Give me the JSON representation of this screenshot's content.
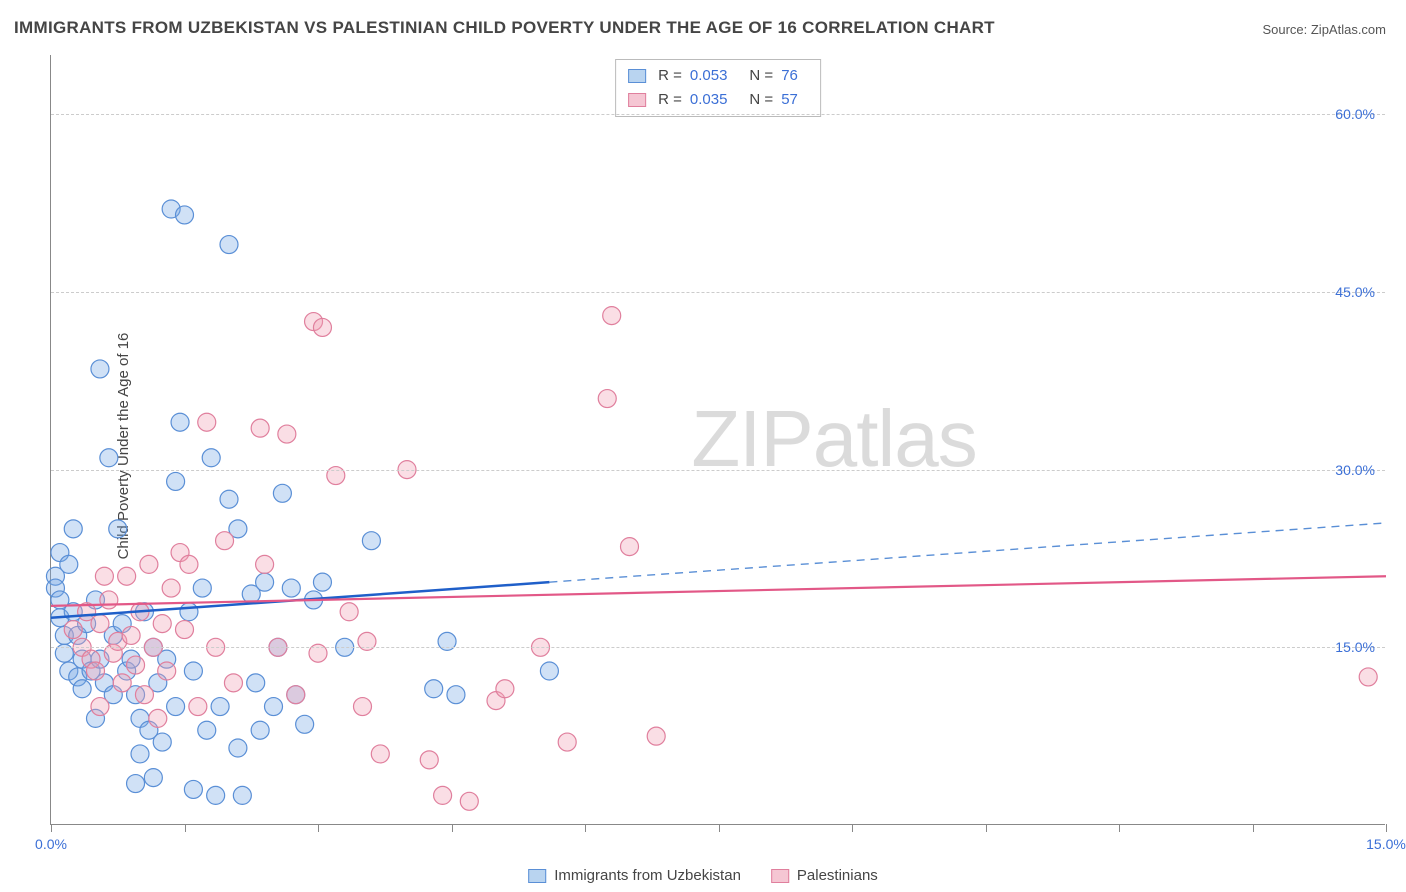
{
  "title": "IMMIGRANTS FROM UZBEKISTAN VS PALESTINIAN CHILD POVERTY UNDER THE AGE OF 16 CORRELATION CHART",
  "source_prefix": "Source: ",
  "source_name": "ZipAtlas.com",
  "y_axis_label": "Child Poverty Under the Age of 16",
  "watermark_a": "ZIP",
  "watermark_b": "atlas",
  "chart": {
    "type": "scatter",
    "xlim": [
      0,
      15
    ],
    "ylim": [
      0,
      65
    ],
    "x_ticks": [
      0,
      1.5,
      3,
      4.5,
      6,
      7.5,
      9,
      10.5,
      12,
      13.5,
      15
    ],
    "x_tick_labels": {
      "0": "0.0%",
      "15": "15.0%"
    },
    "y_gridlines": [
      15,
      30,
      45,
      60
    ],
    "y_tick_labels": {
      "15": "15.0%",
      "30": "30.0%",
      "45": "45.0%",
      "60": "60.0%"
    },
    "background_color": "#ffffff",
    "grid_color": "#cccccc",
    "axis_color": "#888888",
    "tick_label_color": "#3b6fd6",
    "marker_radius": 9,
    "marker_stroke_width": 1.2,
    "series": [
      {
        "name": "Immigrants from Uzbekistan",
        "legend_label": "Immigrants from Uzbekistan",
        "fill": "rgba(120,170,230,0.35)",
        "stroke": "#5a8fd6",
        "swatch_fill": "#b9d4f0",
        "swatch_border": "#5a8fd6",
        "R": "0.053",
        "N": "76",
        "trend": {
          "solid": {
            "x1": 0,
            "y1": 17.5,
            "x2": 5.6,
            "y2": 20.5,
            "color": "#1f5fc9",
            "width": 2.5
          },
          "dashed": {
            "x1": 5.6,
            "y1": 20.5,
            "x2": 15,
            "y2": 25.5,
            "color": "#5a8fd6",
            "width": 1.4,
            "dash": "8 6"
          }
        },
        "points": [
          [
            0.05,
            21
          ],
          [
            0.05,
            20
          ],
          [
            0.1,
            19
          ],
          [
            0.1,
            17.5
          ],
          [
            0.15,
            16
          ],
          [
            0.1,
            23
          ],
          [
            0.2,
            22
          ],
          [
            0.15,
            14.5
          ],
          [
            0.25,
            18
          ],
          [
            0.2,
            13
          ],
          [
            0.3,
            16
          ],
          [
            0.3,
            12.5
          ],
          [
            0.35,
            14
          ],
          [
            0.25,
            25
          ],
          [
            0.4,
            17
          ],
          [
            0.45,
            13
          ],
          [
            0.35,
            11.5
          ],
          [
            0.5,
            19
          ],
          [
            0.55,
            14
          ],
          [
            0.5,
            9
          ],
          [
            0.6,
            12
          ],
          [
            0.55,
            38.5
          ],
          [
            0.7,
            16
          ],
          [
            0.65,
            31
          ],
          [
            0.7,
            11
          ],
          [
            0.8,
            17
          ],
          [
            0.85,
            13
          ],
          [
            0.75,
            25
          ],
          [
            0.9,
            14
          ],
          [
            0.95,
            11
          ],
          [
            1.0,
            9
          ],
          [
            0.95,
            3.5
          ],
          [
            1.05,
            18
          ],
          [
            1.0,
            6
          ],
          [
            1.1,
            8
          ],
          [
            1.15,
            15
          ],
          [
            1.15,
            4
          ],
          [
            1.2,
            12
          ],
          [
            1.3,
            14
          ],
          [
            1.25,
            7
          ],
          [
            1.35,
            52
          ],
          [
            1.5,
            51.5
          ],
          [
            1.45,
            34
          ],
          [
            1.4,
            10
          ],
          [
            1.4,
            29
          ],
          [
            1.55,
            18
          ],
          [
            1.6,
            13
          ],
          [
            1.6,
            3
          ],
          [
            1.7,
            20
          ],
          [
            1.75,
            8
          ],
          [
            1.8,
            31
          ],
          [
            1.85,
            2.5
          ],
          [
            1.9,
            10
          ],
          [
            2.0,
            49
          ],
          [
            2.0,
            27.5
          ],
          [
            2.1,
            25
          ],
          [
            2.1,
            6.5
          ],
          [
            2.15,
            2.5
          ],
          [
            2.25,
            19.5
          ],
          [
            2.3,
            12
          ],
          [
            2.35,
            8
          ],
          [
            2.4,
            20.5
          ],
          [
            2.5,
            10
          ],
          [
            2.55,
            15
          ],
          [
            2.6,
            28
          ],
          [
            2.7,
            20
          ],
          [
            2.75,
            11
          ],
          [
            2.85,
            8.5
          ],
          [
            2.95,
            19
          ],
          [
            3.05,
            20.5
          ],
          [
            3.3,
            15
          ],
          [
            3.6,
            24
          ],
          [
            4.3,
            11.5
          ],
          [
            4.45,
            15.5
          ],
          [
            4.55,
            11
          ],
          [
            5.6,
            13
          ]
        ]
      },
      {
        "name": "Palestinians",
        "legend_label": "Palestinians",
        "fill": "rgba(240,160,180,0.35)",
        "stroke": "#e07f9d",
        "swatch_fill": "#f5c6d3",
        "swatch_border": "#e07f9d",
        "R": "0.035",
        "N": "57",
        "trend": {
          "solid": {
            "x1": 0,
            "y1": 18.5,
            "x2": 15,
            "y2": 21,
            "color": "#e25887",
            "width": 2.2
          }
        },
        "points": [
          [
            0.25,
            16.5
          ],
          [
            0.35,
            15
          ],
          [
            0.4,
            18
          ],
          [
            0.45,
            14
          ],
          [
            0.5,
            13
          ],
          [
            0.55,
            17
          ],
          [
            0.6,
            21
          ],
          [
            0.55,
            10
          ],
          [
            0.7,
            14.5
          ],
          [
            0.65,
            19
          ],
          [
            0.75,
            15.5
          ],
          [
            0.8,
            12
          ],
          [
            0.85,
            21
          ],
          [
            0.9,
            16
          ],
          [
            0.95,
            13.5
          ],
          [
            1.0,
            18
          ],
          [
            1.05,
            11
          ],
          [
            1.1,
            22
          ],
          [
            1.15,
            15
          ],
          [
            1.2,
            9
          ],
          [
            1.25,
            17
          ],
          [
            1.3,
            13
          ],
          [
            1.35,
            20
          ],
          [
            1.45,
            23
          ],
          [
            1.5,
            16.5
          ],
          [
            1.55,
            22
          ],
          [
            1.65,
            10
          ],
          [
            1.75,
            34
          ],
          [
            1.85,
            15
          ],
          [
            1.95,
            24
          ],
          [
            2.05,
            12
          ],
          [
            2.35,
            33.5
          ],
          [
            2.4,
            22
          ],
          [
            2.55,
            15
          ],
          [
            2.65,
            33
          ],
          [
            2.75,
            11
          ],
          [
            2.95,
            42.5
          ],
          [
            3.0,
            14.5
          ],
          [
            3.05,
            42
          ],
          [
            3.2,
            29.5
          ],
          [
            3.35,
            18
          ],
          [
            3.5,
            10
          ],
          [
            3.55,
            15.5
          ],
          [
            3.7,
            6
          ],
          [
            4.0,
            30
          ],
          [
            4.25,
            5.5
          ],
          [
            4.4,
            2.5
          ],
          [
            4.7,
            2
          ],
          [
            5.0,
            10.5
          ],
          [
            5.1,
            11.5
          ],
          [
            5.5,
            15
          ],
          [
            5.8,
            7
          ],
          [
            6.25,
            36
          ],
          [
            6.3,
            43
          ],
          [
            6.5,
            23.5
          ],
          [
            6.8,
            7.5
          ],
          [
            14.8,
            12.5
          ]
        ]
      }
    ]
  },
  "stats_labels": {
    "R": "R =",
    "N": "N ="
  }
}
